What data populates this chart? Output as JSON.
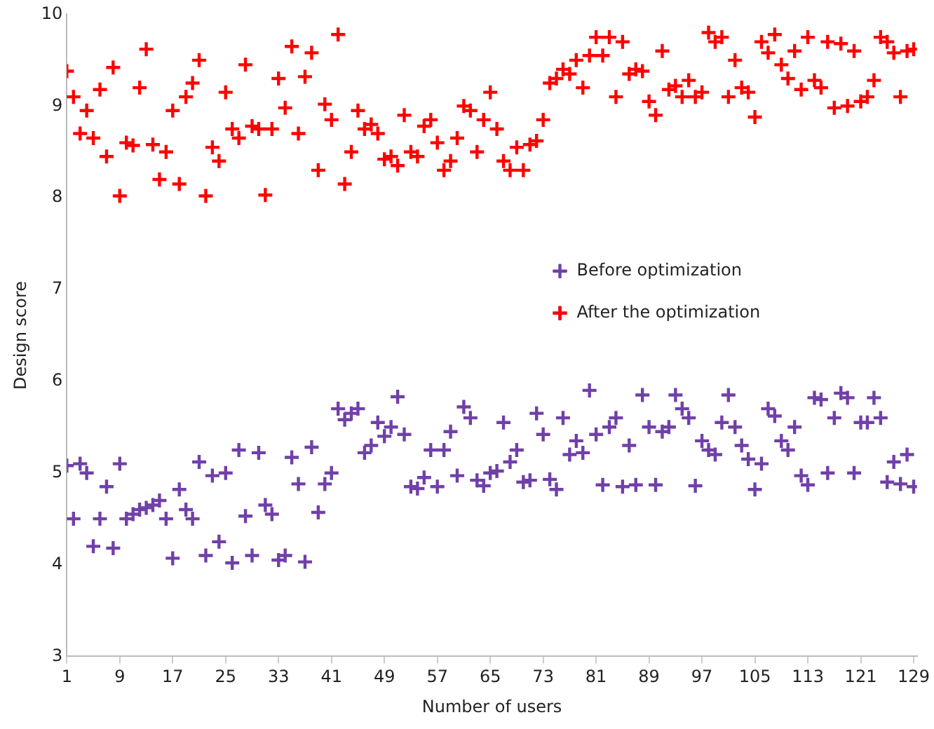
{
  "chart_data": {
    "type": "scatter",
    "xlabel": "Number of users",
    "ylabel": "Design score",
    "x": [
      1,
      2,
      3,
      4,
      5,
      6,
      7,
      8,
      9,
      10,
      11,
      12,
      13,
      14,
      15,
      16,
      17,
      18,
      19,
      20,
      21,
      22,
      23,
      24,
      25,
      26,
      27,
      28,
      29,
      30,
      31,
      32,
      33,
      34,
      35,
      36,
      37,
      38,
      39,
      40,
      41,
      42,
      43,
      44,
      45,
      46,
      47,
      48,
      49,
      50,
      51,
      52,
      53,
      54,
      55,
      56,
      57,
      58,
      59,
      60,
      61,
      62,
      63,
      64,
      65,
      66,
      67,
      68,
      69,
      70,
      71,
      72,
      73,
      74,
      75,
      76,
      77,
      78,
      79,
      80,
      81,
      82,
      83,
      84,
      85,
      86,
      87,
      88,
      89,
      90,
      91,
      92,
      93,
      94,
      95,
      96,
      97,
      98,
      99,
      100,
      101,
      102,
      103,
      104,
      105,
      106,
      107,
      108,
      109,
      110,
      111,
      112,
      113,
      114,
      115,
      116,
      117,
      118,
      119,
      120,
      121,
      122,
      123,
      124,
      125,
      126,
      127,
      128,
      129
    ],
    "xlim": [
      1,
      129.5
    ],
    "xticks": [
      1,
      9,
      17,
      25,
      33,
      41,
      49,
      57,
      65,
      73,
      81,
      89,
      97,
      105,
      113,
      121,
      129
    ],
    "ylim": [
      3,
      10
    ],
    "yticks": [
      3,
      4,
      5,
      6,
      7,
      8,
      9,
      10
    ],
    "grid": false,
    "legend": "right",
    "series": [
      {
        "name": "Before optimization",
        "color": "#7040a8",
        "marker": "cross",
        "values": [
          5.08,
          4.5,
          5.1,
          5.0,
          4.2,
          4.5,
          4.85,
          4.18,
          5.1,
          4.5,
          4.55,
          4.6,
          4.62,
          4.65,
          4.7,
          4.5,
          4.07,
          4.82,
          4.6,
          4.5,
          5.12,
          4.1,
          4.97,
          4.25,
          5.0,
          4.02,
          5.25,
          4.53,
          4.1,
          5.22,
          4.65,
          4.55,
          4.05,
          4.1,
          5.17,
          4.88,
          4.03,
          5.28,
          4.57,
          4.88,
          5.0,
          5.7,
          5.58,
          5.65,
          5.7,
          5.22,
          5.3,
          5.55,
          5.4,
          5.5,
          5.83,
          5.42,
          4.85,
          4.83,
          4.95,
          5.25,
          4.85,
          5.25,
          5.45,
          4.97,
          5.72,
          5.6,
          4.92,
          4.86,
          5.0,
          5.02,
          5.55,
          5.12,
          5.25,
          4.9,
          4.92,
          5.65,
          5.42,
          4.93,
          4.82,
          5.6,
          5.2,
          5.35,
          5.22,
          5.9,
          5.42,
          4.87,
          5.5,
          5.6,
          4.85,
          5.3,
          4.87,
          5.85,
          5.5,
          4.87,
          5.45,
          5.5,
          5.85,
          5.7,
          5.6,
          4.86,
          5.35,
          5.25,
          5.2,
          5.55,
          5.85,
          5.5,
          5.3,
          5.15,
          4.82,
          5.1,
          5.7,
          5.62,
          5.35,
          5.25,
          5.5,
          4.97,
          4.87,
          5.82,
          5.8,
          5.0,
          5.6,
          5.87,
          5.82,
          5.0,
          5.55,
          5.55,
          5.82,
          5.6,
          4.9,
          5.12,
          4.88,
          5.2,
          4.85
        ]
      },
      {
        "name": "After the optimization",
        "color": "#ff0000",
        "marker": "cross",
        "values": [
          9.38,
          9.1,
          8.7,
          8.95,
          8.65,
          9.18,
          8.45,
          9.42,
          8.02,
          8.6,
          8.57,
          9.2,
          9.62,
          8.58,
          8.2,
          8.5,
          8.95,
          8.15,
          9.1,
          9.25,
          9.5,
          8.02,
          8.55,
          8.4,
          9.15,
          8.75,
          8.65,
          9.45,
          8.78,
          8.75,
          8.03,
          8.75,
          9.3,
          8.98,
          9.65,
          8.7,
          9.32,
          9.58,
          8.3,
          9.02,
          8.85,
          9.78,
          8.15,
          8.5,
          8.95,
          8.75,
          8.8,
          8.7,
          8.42,
          8.45,
          8.35,
          8.9,
          8.5,
          8.45,
          8.78,
          8.85,
          8.6,
          8.3,
          8.4,
          8.65,
          9.0,
          8.95,
          8.5,
          8.85,
          9.15,
          8.75,
          8.4,
          8.3,
          8.55,
          8.3,
          8.58,
          8.62,
          8.85,
          9.25,
          9.3,
          9.4,
          9.35,
          9.5,
          9.2,
          9.55,
          9.75,
          9.55,
          9.75,
          9.1,
          9.7,
          9.35,
          9.4,
          9.38,
          9.05,
          8.9,
          9.6,
          9.18,
          9.22,
          9.1,
          9.28,
          9.1,
          9.15,
          9.8,
          9.7,
          9.75,
          9.1,
          9.5,
          9.2,
          9.15,
          8.88,
          9.7,
          9.58,
          9.78,
          9.45,
          9.3,
          9.6,
          9.18,
          9.75,
          9.28,
          9.2,
          9.7,
          8.98,
          9.68,
          9.0,
          9.6,
          9.05,
          9.1,
          9.28,
          9.75,
          9.7,
          9.58,
          9.1,
          9.6,
          9.62
        ]
      }
    ]
  }
}
